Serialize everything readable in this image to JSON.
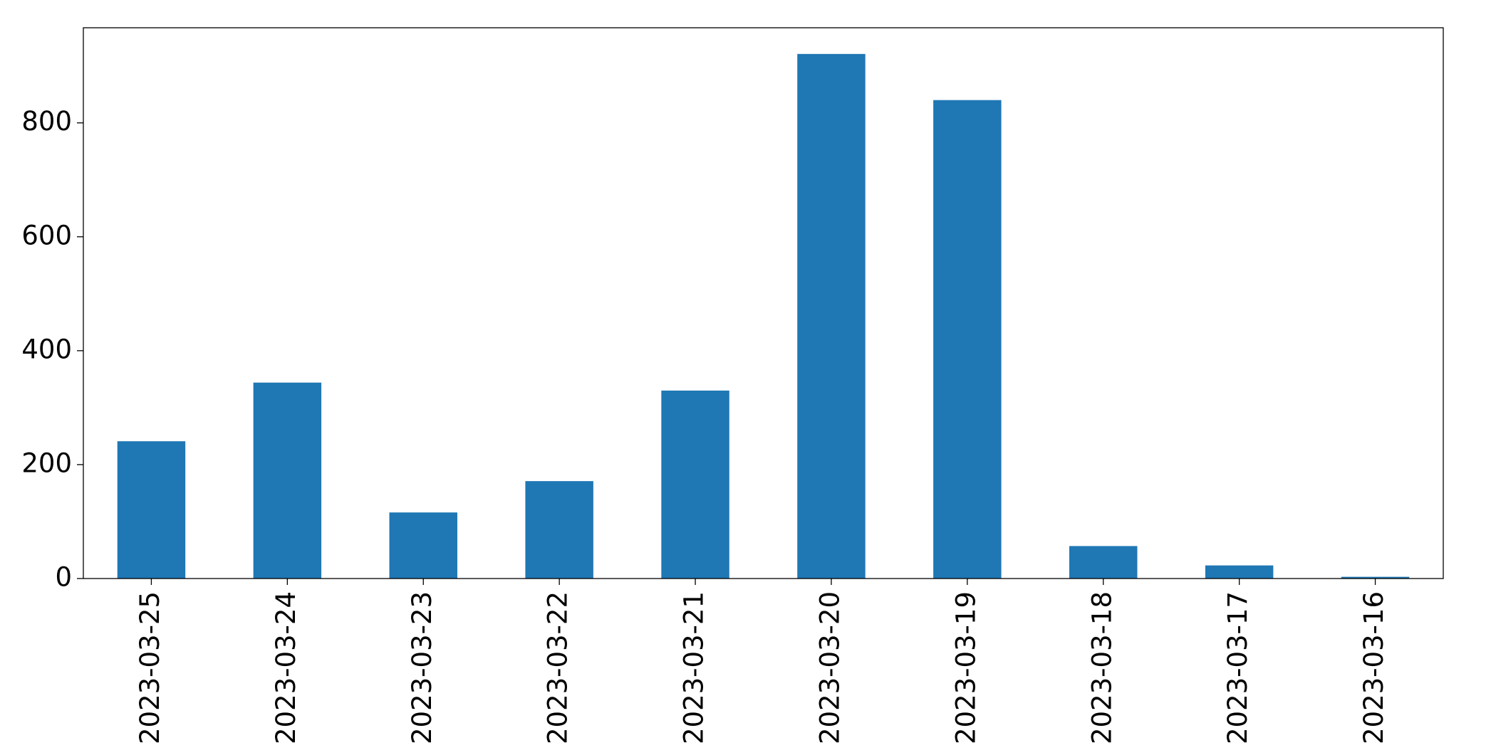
{
  "chart_data": {
    "type": "bar",
    "categories": [
      "2023-03-25",
      "2023-03-24",
      "2023-03-23",
      "2023-03-22",
      "2023-03-21",
      "2023-03-20",
      "2023-03-19",
      "2023-03-18",
      "2023-03-17",
      "2023-03-16"
    ],
    "values": [
      241,
      344,
      116,
      171,
      330,
      921,
      840,
      57,
      23,
      3
    ],
    "color": "#1f77b4",
    "ylim": [
      0,
      967
    ],
    "yticks": [
      0,
      200,
      400,
      600,
      800
    ],
    "grid": false
  }
}
